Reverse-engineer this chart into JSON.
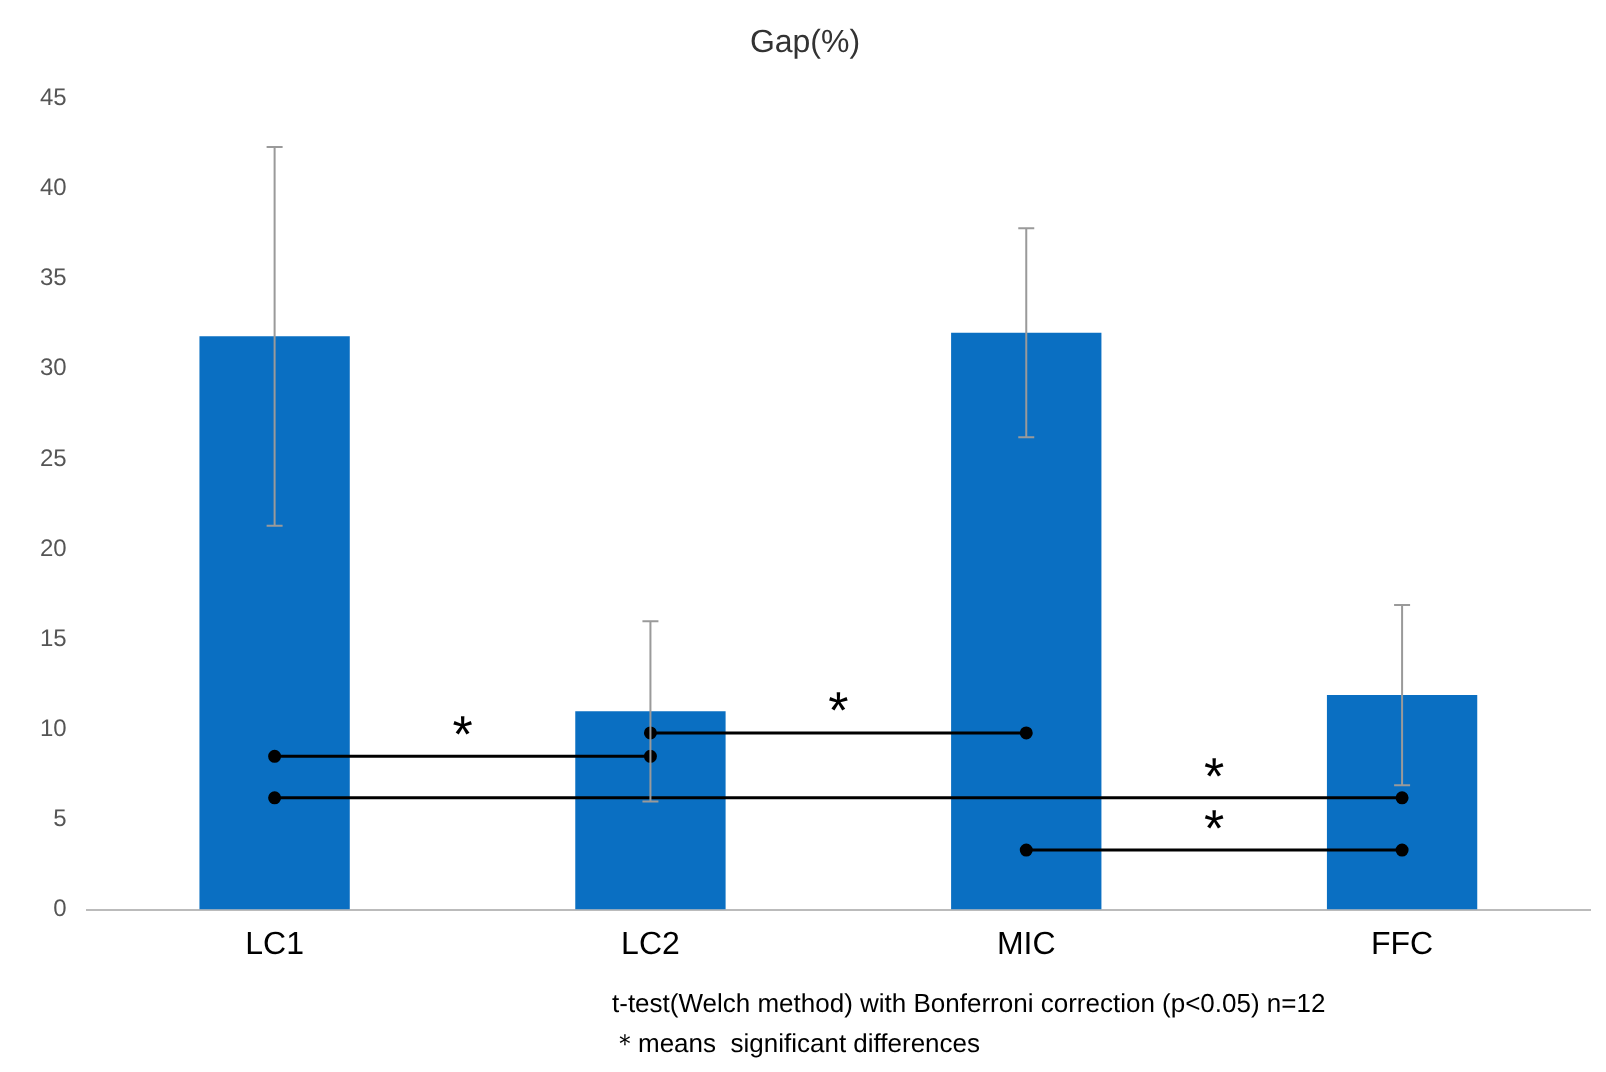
{
  "chart_data": {
    "type": "bar",
    "title": "Gap(%)",
    "categories": [
      "LC1",
      "LC2",
      "MIC",
      "FFC"
    ],
    "series": [
      {
        "color": "#0a6fc2",
        "values": [
          31.8,
          11,
          32,
          11.9
        ],
        "errors": [
          10.5,
          5,
          5.8,
          5
        ]
      },
      {
        "type": "line",
        "color": "#000000",
        "x": [
          "LC1",
          "LC2"
        ],
        "values": [
          8.5,
          8.5
        ]
      },
      {
        "type": "line",
        "color": "#000000",
        "x": [
          "LC2",
          "MIC"
        ],
        "values": [
          9.8,
          9.8
        ]
      },
      {
        "type": "line",
        "color": "#000000",
        "x": [
          "LC1",
          "FFC"
        ],
        "values": [
          6.2,
          6.2
        ]
      },
      {
        "type": "line",
        "color": "#000000",
        "x": [
          "MIC",
          "FFC"
        ],
        "values": [
          3.3,
          3.3
        ]
      }
    ],
    "marker": "circle",
    "ylim": [
      0,
      45
    ],
    "yticks": [
      0,
      5,
      10,
      15,
      20,
      25,
      30,
      35,
      40,
      45
    ],
    "grid": false,
    "legend": false,
    "annotations": [
      "*",
      "*",
      "*",
      "*",
      "t-test(Welch method) with Bonferroni correction (p<0.05) n=12",
      "＊means  significant differences"
    ]
  }
}
